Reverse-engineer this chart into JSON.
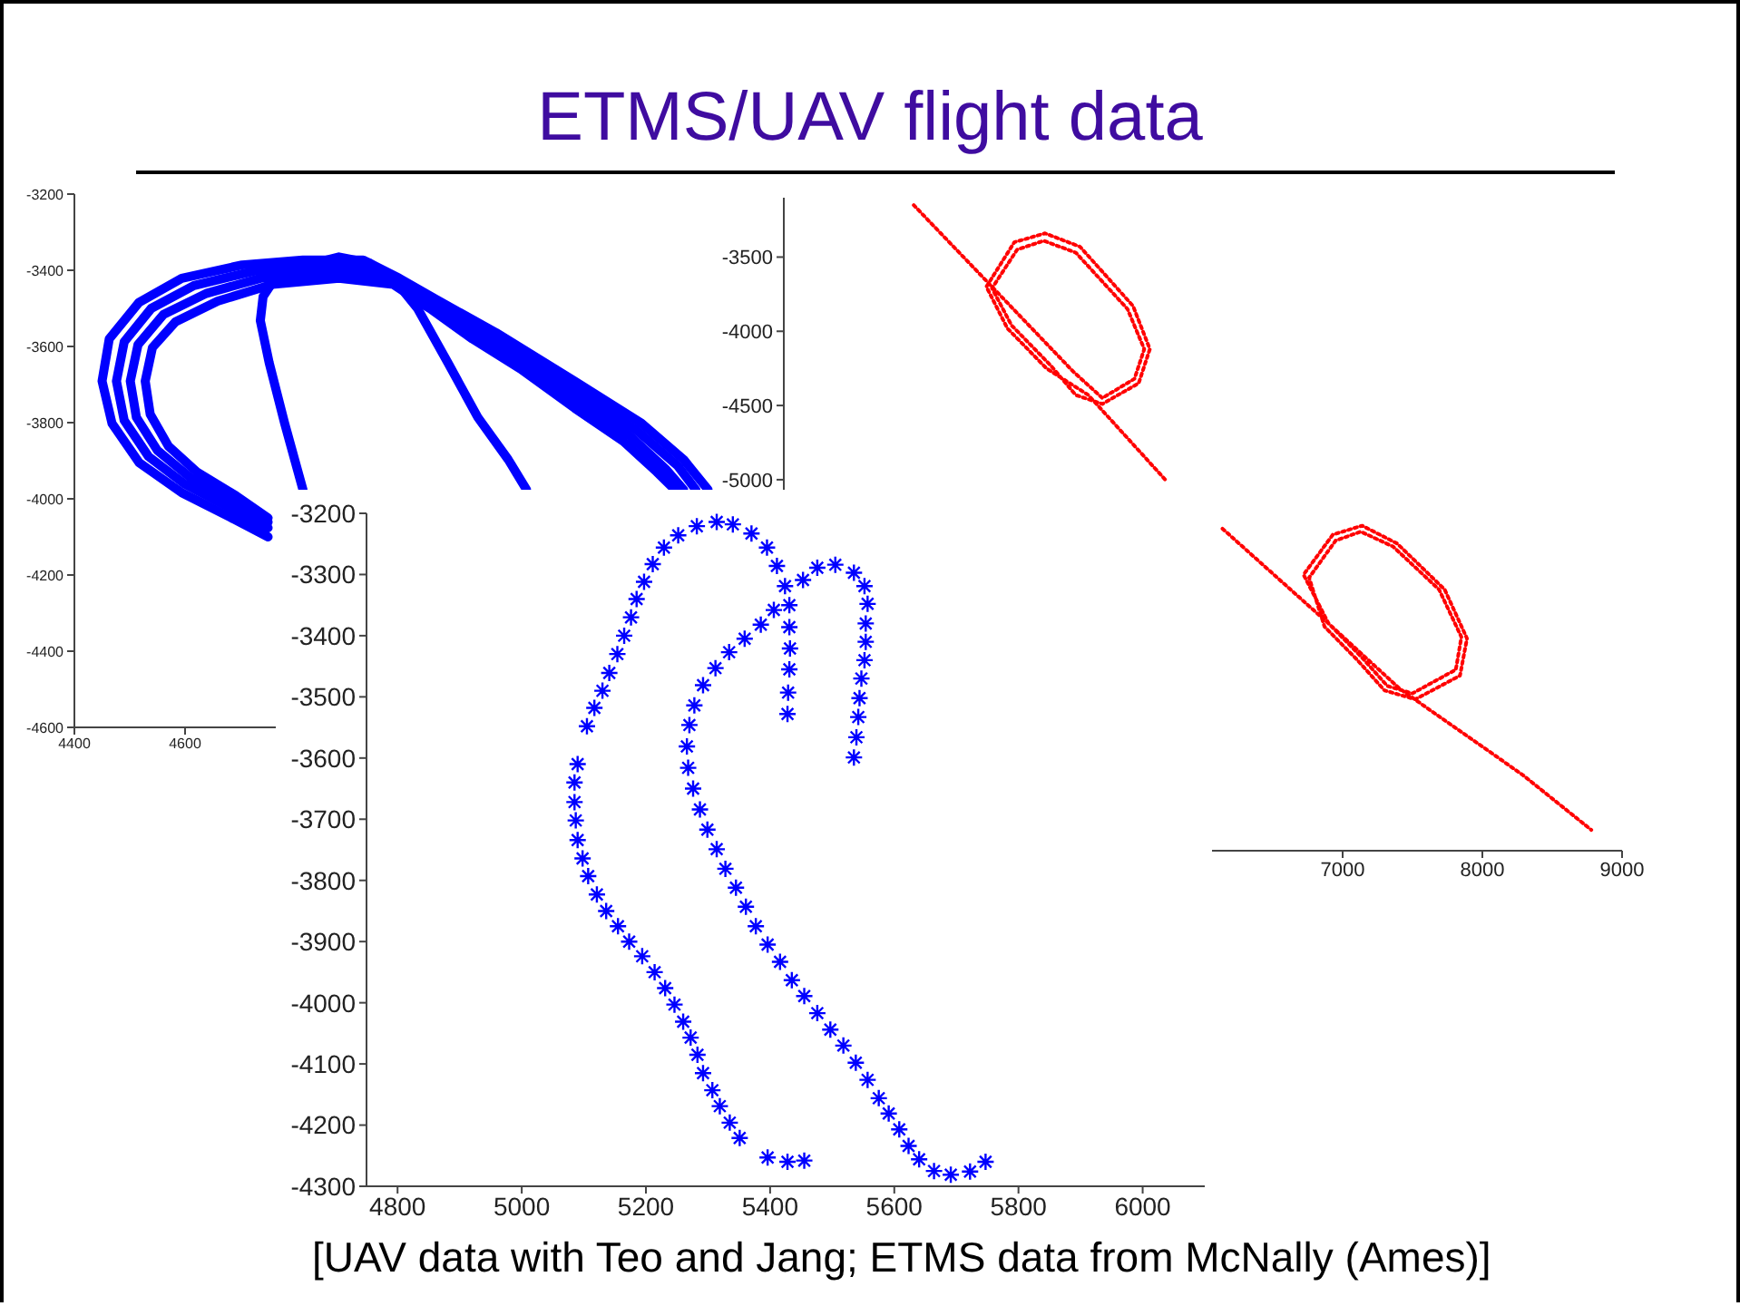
{
  "chart_data": [
    {
      "type": "line",
      "title": "ETMS/UAV flight data",
      "xlim": [
        4400,
        5600
      ],
      "xticks": [
        4400,
        4600
      ],
      "ylim": [
        -4600,
        -3200
      ],
      "yticks": [
        -4600,
        -4400,
        -4200,
        -4000,
        -3800,
        -3600,
        -3400,
        -3200
      ],
      "line_style": "solid",
      "series": [
        {
          "color": "#0000ff",
          "x": [
            4750,
            4681,
            4594,
            4517,
            4468,
            4450,
            4463,
            4517,
            4594,
            4703,
            4813,
            4922,
            4987,
            5053,
            5162,
            5304,
            5425,
            5501,
            5545
          ],
          "values": [
            -4100,
            -4048,
            -3984,
            -3905,
            -3802,
            -3691,
            -3580,
            -3484,
            -3421,
            -3386,
            -3373,
            -3373,
            -3421,
            -3476,
            -3564,
            -3691,
            -3802,
            -3897,
            -3976
          ]
        },
        {
          "color": "#0000ff",
          "x": [
            4750,
            4681,
            4599,
            4534,
            4490,
            4476,
            4490,
            4539,
            4616,
            4725,
            4834,
            4933,
            5009,
            5075,
            5173,
            5304,
            5414,
            5490,
            5523
          ],
          "values": [
            -4076,
            -4024,
            -3961,
            -3889,
            -3794,
            -3691,
            -3588,
            -3500,
            -3440,
            -3402,
            -3389,
            -3389,
            -3445,
            -3508,
            -3596,
            -3715,
            -3818,
            -3913,
            -3976
          ]
        },
        {
          "color": "#0000ff",
          "x": [
            4750,
            4687,
            4610,
            4550,
            4512,
            4501,
            4515,
            4561,
            4638,
            4736,
            4856,
            4955,
            5031,
            5097,
            5184,
            5304,
            5403,
            5468,
            5501
          ],
          "values": [
            -4061,
            -4008,
            -3945,
            -3873,
            -3786,
            -3691,
            -3595,
            -3516,
            -3461,
            -3421,
            -3405,
            -3413,
            -3476,
            -3540,
            -3627,
            -3738,
            -3834,
            -3921,
            -3976
          ]
        },
        {
          "color": "#0000ff",
          "x": [
            4750,
            4692,
            4621,
            4570,
            4537,
            4528,
            4541,
            4583,
            4659,
            4758,
            4878,
            4976,
            5042,
            5119,
            5206,
            5304,
            5392,
            5452,
            5485
          ],
          "values": [
            -4050,
            -3992,
            -3929,
            -3862,
            -3778,
            -3691,
            -3603,
            -3535,
            -3481,
            -3437,
            -3421,
            -3437,
            -3500,
            -3580,
            -3659,
            -3762,
            -3849,
            -3929,
            -3976
          ]
        },
        {
          "color": "#0000ff",
          "x": [
            4813,
            4780,
            4752,
            4736,
            4741,
            4763,
            4813,
            4878,
            4933,
            4976,
            5020,
            5075,
            5129,
            5184,
            5217
          ],
          "values": [
            -3976,
            -3802,
            -3643,
            -3532,
            -3469,
            -3421,
            -3389,
            -3365,
            -3381,
            -3421,
            -3500,
            -3643,
            -3786,
            -3897,
            -3976
          ]
        }
      ]
    },
    {
      "type": "line",
      "xlim": [
        3000,
        9000
      ],
      "xticks": [
        7000,
        8000,
        9000
      ],
      "ylim": [
        -7500,
        -3100
      ],
      "yticks": [
        -5000,
        -4500,
        -4000,
        -3500
      ],
      "line_style": "dotted",
      "series": [
        {
          "color": "#ff0000",
          "x": [
            3930,
            4490,
            5070,
            5280,
            5510,
            5580,
            5460,
            5090,
            4860,
            4670,
            4490,
            4630,
            4910,
            5090,
            5280,
            5540,
            5620,
            5500,
            5120,
            4870,
            4650,
            4450,
            4600,
            4880,
            5180,
            5740
          ],
          "values": [
            -3150,
            -3700,
            -4270,
            -4450,
            -4320,
            -4120,
            -3850,
            -3470,
            -3390,
            -3450,
            -3710,
            -3960,
            -4230,
            -4430,
            -4490,
            -4350,
            -4120,
            -3830,
            -3430,
            -3340,
            -3400,
            -3700,
            -3980,
            -4250,
            -4430,
            -5010
          ]
        },
        {
          "color": "#ff0000",
          "x": [
            6140,
            6900,
            7130,
            7320,
            7500,
            7810,
            7850,
            7690,
            7360,
            7130,
            6950,
            6760,
            6870,
            7100,
            7300,
            7520,
            7840,
            7890,
            7730,
            7390,
            7140,
            6930,
            6720,
            6900,
            7410,
            8290,
            8780
          ],
          "values": [
            -5330,
            -5970,
            -6190,
            -6390,
            -6440,
            -6280,
            -6060,
            -5740,
            -5450,
            -5350,
            -5410,
            -5660,
            -5990,
            -6210,
            -6420,
            -6480,
            -6320,
            -6070,
            -5740,
            -5430,
            -5310,
            -5370,
            -5640,
            -5970,
            -6410,
            -6990,
            -7360
          ]
        }
      ]
    },
    {
      "type": "scatter",
      "marker": "cross",
      "annotations": [
        "[UAV data with Teo and Jang; ETMS data from McNally (Ames)]"
      ],
      "xlim": [
        4750,
        6100
      ],
      "xticks": [
        4800,
        5000,
        5200,
        5400,
        5600,
        5800,
        6000
      ],
      "ylim": [
        -4300,
        -3200
      ],
      "yticks": [
        -4300,
        -4200,
        -4100,
        -4000,
        -3900,
        -3800,
        -3700,
        -3600,
        -3500,
        -3400,
        -3300,
        -3200
      ],
      "series": [
        {
          "color": "#0000ff",
          "x": [
            5428,
            5429,
            5431,
            5432,
            5431,
            5431,
            5424,
            5411,
            5395,
            5370,
            5340,
            5314,
            5282,
            5252,
            5229,
            5211,
            5197,
            5185,
            5176,
            5165,
            5154,
            5141,
            5130,
            5117,
            5105,
            5090,
            5085,
            5085,
            5087,
            5090,
            5098,
            5107,
            5121,
            5136,
            5155,
            5173,
            5194,
            5214,
            5231,
            5246,
            5260,
            5272,
            5283,
            5292,
            5307,
            5319,
            5335,
            5351,
            5396,
            5428,
            5455
          ],
          "values": [
            -3528,
            -3493,
            -3455,
            -3421,
            -3386,
            -3350,
            -3319,
            -3286,
            -3256,
            -3233,
            -3218,
            -3214,
            -3221,
            -3236,
            -3256,
            -3283,
            -3312,
            -3340,
            -3370,
            -3400,
            -3430,
            -3461,
            -3490,
            -3518,
            -3548,
            -3610,
            -3640,
            -3672,
            -3702,
            -3734,
            -3764,
            -3793,
            -3823,
            -3850,
            -3875,
            -3900,
            -3924,
            -3950,
            -3976,
            -4003,
            -4031,
            -4057,
            -4085,
            -4115,
            -4143,
            -4169,
            -4196,
            -4221,
            -4253,
            -4260,
            -4258
          ]
        },
        {
          "color": "#0000ff",
          "x": [
            5535,
            5539,
            5542,
            5544,
            5547,
            5552,
            5554,
            5554,
            5557,
            5552,
            5535,
            5505,
            5476,
            5453,
            5406,
            5385,
            5359,
            5334,
            5312,
            5292,
            5278,
            5270,
            5266,
            5268,
            5276,
            5287,
            5299,
            5314,
            5328,
            5345,
            5361,
            5377,
            5396,
            5416,
            5435,
            5455,
            5476,
            5497,
            5518,
            5538,
            5557,
            5575,
            5591,
            5608,
            5623,
            5640,
            5664,
            5691,
            5722,
            5747
          ],
          "values": [
            -3599,
            -3566,
            -3533,
            -3502,
            -3470,
            -3440,
            -3410,
            -3380,
            -3348,
            -3319,
            -3297,
            -3284,
            -3289,
            -3309,
            -3358,
            -3382,
            -3405,
            -3427,
            -3453,
            -3481,
            -3514,
            -3546,
            -3581,
            -3616,
            -3650,
            -3684,
            -3717,
            -3749,
            -3781,
            -3812,
            -3843,
            -3875,
            -3905,
            -3933,
            -3963,
            -3989,
            -4017,
            -4044,
            -4070,
            -4098,
            -4126,
            -4156,
            -4181,
            -4207,
            -4234,
            -4256,
            -4275,
            -4281,
            -4276,
            -4260
          ]
        }
      ]
    }
  ]
}
